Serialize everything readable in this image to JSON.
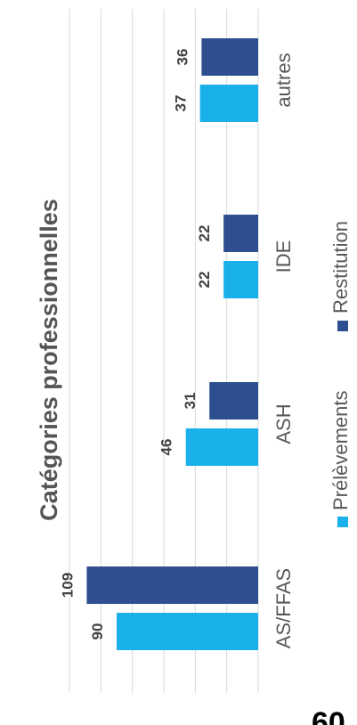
{
  "chart_data": {
    "type": "bar",
    "orientation": "rotated-90",
    "title": "Catégories professionnelles",
    "categories": [
      "AS/FFAS",
      "ASH",
      "IDE",
      "autres"
    ],
    "series": [
      {
        "name": "Prélèvements",
        "values": [
          90,
          46,
          22,
          37
        ],
        "color": "#1ab0ea"
      },
      {
        "name": "Restitution",
        "values": [
          109,
          31,
          22,
          36
        ],
        "color": "#2e4f8f"
      }
    ],
    "ylim": [
      0,
      120
    ],
    "grid": true,
    "legend_position": "bottom",
    "data_labels": true
  },
  "footer_mark": "60"
}
